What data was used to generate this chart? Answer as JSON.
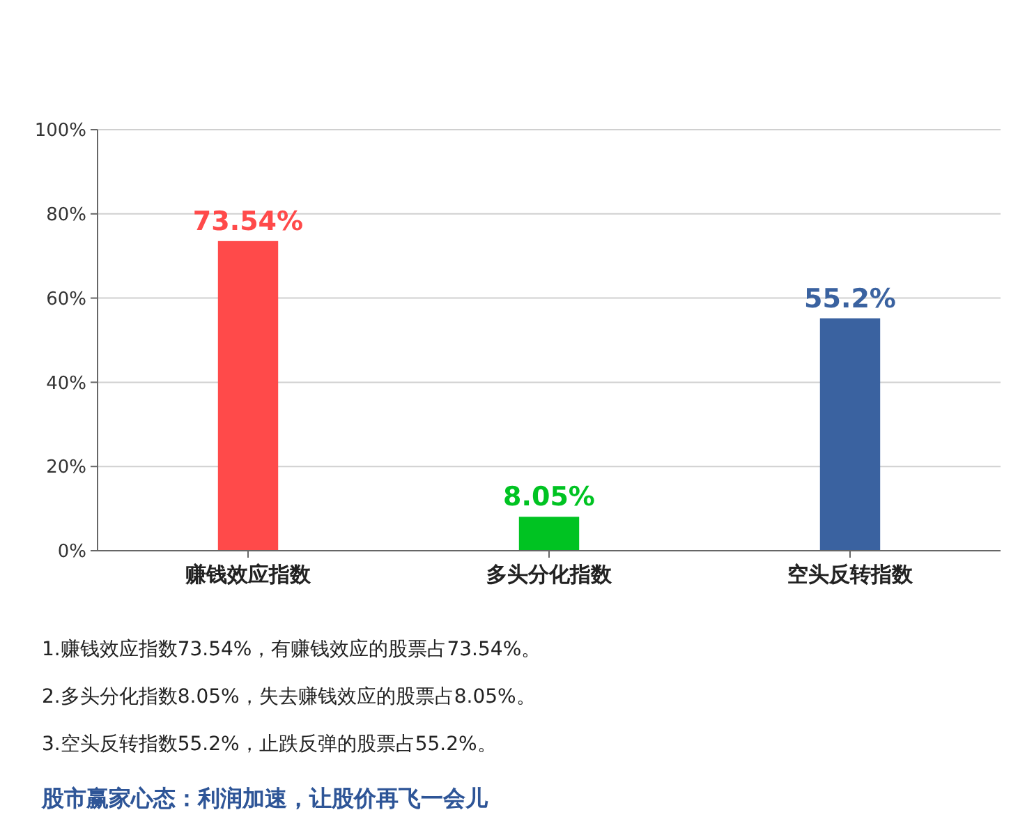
{
  "chart_data": {
    "type": "bar",
    "categories": [
      "赚钱效应指数",
      "多头分化指数",
      "空头反转指数"
    ],
    "values": [
      73.54,
      8.05,
      55.2
    ],
    "colors": [
      "#ff4a4a",
      "#00c322",
      "#3a62a0"
    ],
    "value_labels": [
      "73.54%",
      "8.05%",
      "55.2%"
    ],
    "ylim": [
      0,
      100
    ],
    "yticks": [
      {
        "value": 0,
        "label": "0%"
      },
      {
        "value": 20,
        "label": "20%"
      },
      {
        "value": 40,
        "label": "40%"
      },
      {
        "value": 60,
        "label": "60%"
      },
      {
        "value": 80,
        "label": "80%"
      },
      {
        "value": 100,
        "label": "100%"
      }
    ],
    "grid": "y",
    "annotations": [
      "1.赚钱效应指数73.54%，有赚钱效应的股票占73.54%。",
      "2.多头分化指数8.05%，失去赚钱效应的股票占8.05%。",
      "3.空头反转指数55.2%，止跌反弹的股票占55.2%。",
      "股市赢家心态：利润加速，让股价再飞一会儿"
    ]
  }
}
